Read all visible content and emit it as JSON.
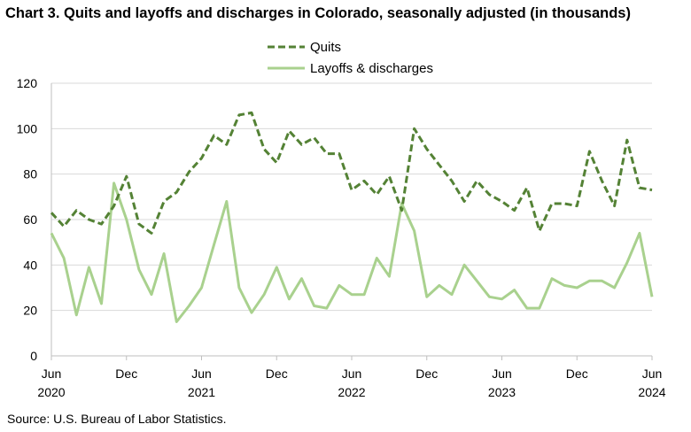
{
  "title": "Chart 3. Quits and layoffs and discharges in Colorado, seasonally adjusted (in thousands)",
  "source": "Source: U.S. Bureau of Labor Statistics.",
  "colors": {
    "quits": "#548235",
    "layoffs": "#a9d18e",
    "grid": "#d9d9d9",
    "axis": "#bfbfbf"
  },
  "chart_data": {
    "type": "line",
    "title": "Chart 3. Quits and layoffs and discharges in Colorado, seasonally adjusted (in thousands)",
    "xlabel": "",
    "ylabel": "",
    "ylim": [
      0,
      120
    ],
    "yticks": [
      0,
      20,
      40,
      60,
      80,
      100,
      120
    ],
    "grid": true,
    "legend_position": "top-center",
    "x": [
      "2020-06",
      "2020-07",
      "2020-08",
      "2020-09",
      "2020-10",
      "2020-11",
      "2020-12",
      "2021-01",
      "2021-02",
      "2021-03",
      "2021-04",
      "2021-05",
      "2021-06",
      "2021-07",
      "2021-08",
      "2021-09",
      "2021-10",
      "2021-11",
      "2021-12",
      "2022-01",
      "2022-02",
      "2022-03",
      "2022-04",
      "2022-05",
      "2022-06",
      "2022-07",
      "2022-08",
      "2022-09",
      "2022-10",
      "2022-11",
      "2022-12",
      "2023-01",
      "2023-02",
      "2023-03",
      "2023-04",
      "2023-05",
      "2023-06",
      "2023-07",
      "2023-08",
      "2023-09",
      "2023-10",
      "2023-11",
      "2023-12",
      "2024-01",
      "2024-02",
      "2024-03",
      "2024-04",
      "2024-05",
      "2024-06"
    ],
    "x_tick_labels": [
      {
        "month": "Jun",
        "year": "2020",
        "index": 0
      },
      {
        "month": "Dec",
        "year": "",
        "index": 6
      },
      {
        "month": "Jun",
        "year": "2021",
        "index": 12
      },
      {
        "month": "Dec",
        "year": "",
        "index": 18
      },
      {
        "month": "Jun",
        "year": "2022",
        "index": 24
      },
      {
        "month": "Dec",
        "year": "",
        "index": 30
      },
      {
        "month": "Jun",
        "year": "2023",
        "index": 36
      },
      {
        "month": "Dec",
        "year": "",
        "index": 42
      },
      {
        "month": "Jun",
        "year": "2024",
        "index": 48
      }
    ],
    "series": [
      {
        "name": "Quits",
        "style": "dashed",
        "color": "#548235",
        "values": [
          63,
          57,
          64,
          60,
          58,
          66,
          79,
          58,
          54,
          68,
          72,
          81,
          87,
          97,
          93,
          106,
          107,
          91,
          85,
          99,
          93,
          96,
          89,
          89,
          73,
          77,
          71,
          79,
          64,
          100,
          91,
          84,
          77,
          68,
          77,
          71,
          68,
          64,
          74,
          55,
          67,
          67,
          66,
          90,
          77,
          66,
          95,
          74,
          73
        ]
      },
      {
        "name": "Layoffs & discharges",
        "style": "solid",
        "color": "#a9d18e",
        "values": [
          54,
          43,
          18,
          39,
          23,
          76,
          60,
          38,
          27,
          45,
          15,
          22,
          30,
          49,
          68,
          30,
          19,
          27,
          39,
          25,
          34,
          22,
          21,
          31,
          27,
          27,
          43,
          35,
          67,
          55,
          26,
          31,
          27,
          40,
          33,
          26,
          25,
          29,
          21,
          21,
          34,
          31,
          30,
          33,
          33,
          30,
          41,
          54,
          26
        ]
      }
    ]
  }
}
